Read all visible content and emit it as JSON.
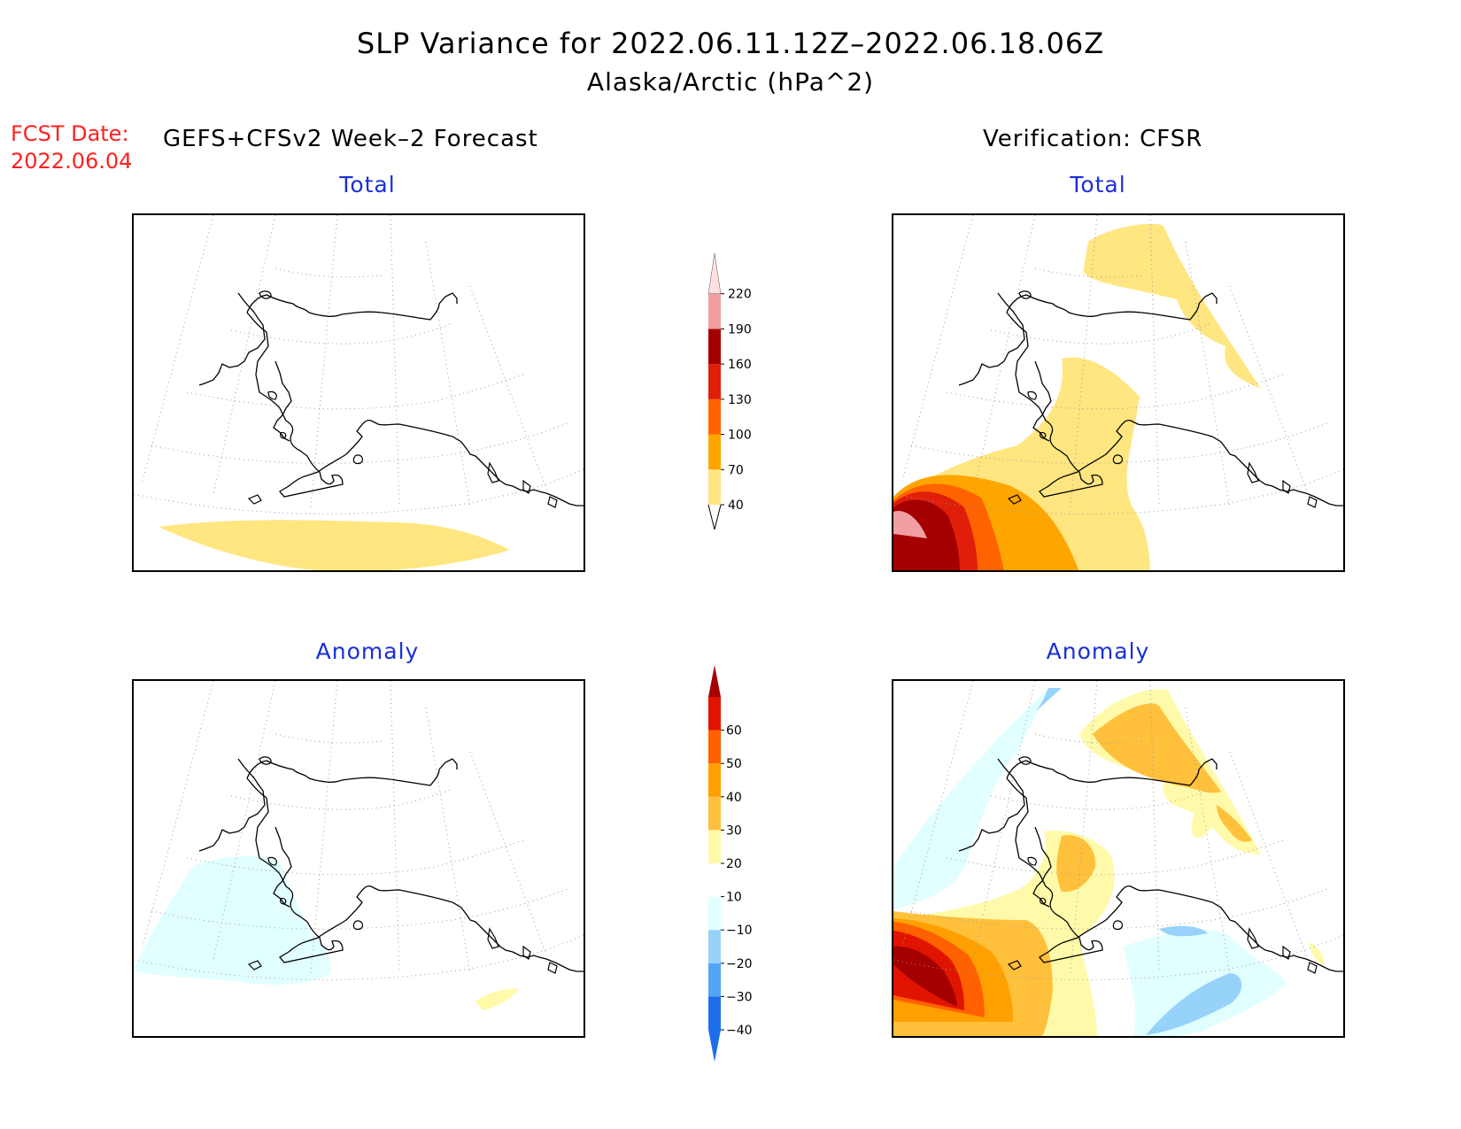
{
  "title": {
    "line1": "SLP Variance for 2022.06.11.12Z–2022.06.18.06Z",
    "line2": "Alaska/Arctic (hPa^2)"
  },
  "forecast_date": {
    "label": "FCST Date:",
    "value": "2022.06.04"
  },
  "columns": {
    "left_header": "GEFS+CFSv2 Week–2 Forecast",
    "right_header": "Verification: CFSR"
  },
  "panels": [
    {
      "id": "forecast-total",
      "title": "Total"
    },
    {
      "id": "verification-total",
      "title": "Total"
    },
    {
      "id": "forecast-anomaly",
      "title": "Anomaly"
    },
    {
      "id": "verification-anomaly",
      "title": "Anomaly"
    }
  ],
  "colorbars": {
    "total": {
      "levels": [
        "40",
        "70",
        "100",
        "130",
        "160",
        "190",
        "220"
      ],
      "colors": [
        "#ffe680",
        "#ffa500",
        "#ff6400",
        "#e01e0a",
        "#a50000",
        "#f0a0a0",
        "#ffe0e0"
      ]
    },
    "anomaly": {
      "levels": [
        "−40",
        "−30",
        "−20",
        "−10",
        "10",
        "20",
        "30",
        "40",
        "50",
        "60"
      ],
      "colors": [
        "#1e6eeb",
        "#1e6eeb",
        "#50a5f5",
        "#96d2fa",
        "#e1ffff",
        "#ffffff",
        "#fffaaa",
        "#ffc03c",
        "#ffa000",
        "#ff6000",
        "#e11400",
        "#a50000"
      ]
    }
  },
  "colors": {
    "title_text": "#000000",
    "subtitle_text": "#1a2fd9",
    "forecast_date_text": "#ff2020"
  }
}
